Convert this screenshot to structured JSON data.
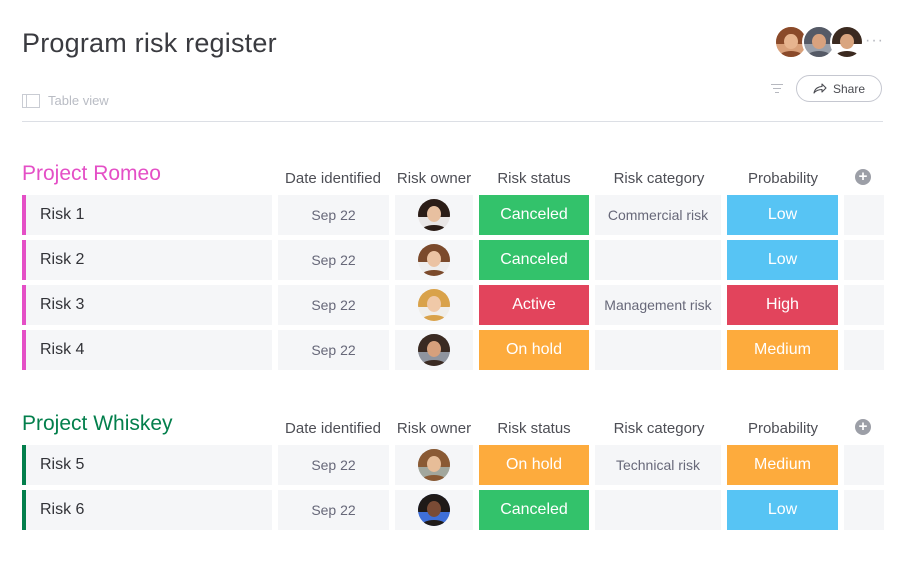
{
  "page": {
    "title": "Program risk register",
    "view_label": "Table view",
    "share_label": "Share",
    "more_label": "···"
  },
  "header_avatars": [
    {
      "name": "avatar-1",
      "hair": "#8a4a2a",
      "skin": "#e7b48f",
      "bg": "#d9a07a"
    },
    {
      "name": "avatar-2",
      "hair": "#555a66",
      "skin": "#d8a27e",
      "bg": "#9aa0aa"
    },
    {
      "name": "avatar-3",
      "hair": "#3b2a20",
      "skin": "#d9a57f",
      "bg": "#ffffff"
    }
  ],
  "columns": [
    "Date identified",
    "Risk owner",
    "Risk status",
    "Risk category",
    "Probability"
  ],
  "colors": {
    "romeo": "#e44fc6",
    "whiskey": "#037f4c",
    "Canceled": "#33c26b",
    "Active": "#e2445c",
    "On hold": "#fdab3d",
    "Low": "#57c4f4",
    "High": "#e2445c",
    "Medium": "#fdab3d"
  },
  "groups": [
    {
      "title": "Project Romeo",
      "color_key": "romeo",
      "rows": [
        {
          "name": "Risk 1",
          "date": "Sep 22",
          "owner": {
            "hair": "#2b1d17",
            "skin": "#e8c0a0",
            "bg": "#e9e6e6"
          },
          "status": "Canceled",
          "category": "Commercial risk",
          "probability": "Low"
        },
        {
          "name": "Risk 2",
          "date": "Sep 22",
          "owner": {
            "hair": "#7b4a2c",
            "skin": "#ebc3a3",
            "bg": "#eeeeee"
          },
          "status": "Canceled",
          "category": "",
          "probability": "Low"
        },
        {
          "name": "Risk 3",
          "date": "Sep 22",
          "owner": {
            "hair": "#d9a24a",
            "skin": "#f0c9a8",
            "bg": "#f0eeea"
          },
          "status": "Active",
          "category": "Management risk",
          "probability": "High"
        },
        {
          "name": "Risk 4",
          "date": "Sep 22",
          "owner": {
            "hair": "#3a2a22",
            "skin": "#d6a07c",
            "bg": "#8f949e"
          },
          "status": "On hold",
          "category": "",
          "probability": "Medium"
        }
      ]
    },
    {
      "title": "Project Whiskey",
      "color_key": "whiskey",
      "rows": [
        {
          "name": "Risk 5",
          "date": "Sep 22",
          "owner": {
            "hair": "#8a5a34",
            "skin": "#e7bd98",
            "bg": "#a2a79d"
          },
          "status": "On hold",
          "category": "Technical risk",
          "probability": "Medium"
        },
        {
          "name": "Risk 6",
          "date": "Sep 22",
          "owner": {
            "hair": "#1f1a18",
            "skin": "#7a4b35",
            "bg": "#3f6fd8"
          },
          "status": "Canceled",
          "category": "",
          "probability": "Low"
        }
      ]
    }
  ]
}
